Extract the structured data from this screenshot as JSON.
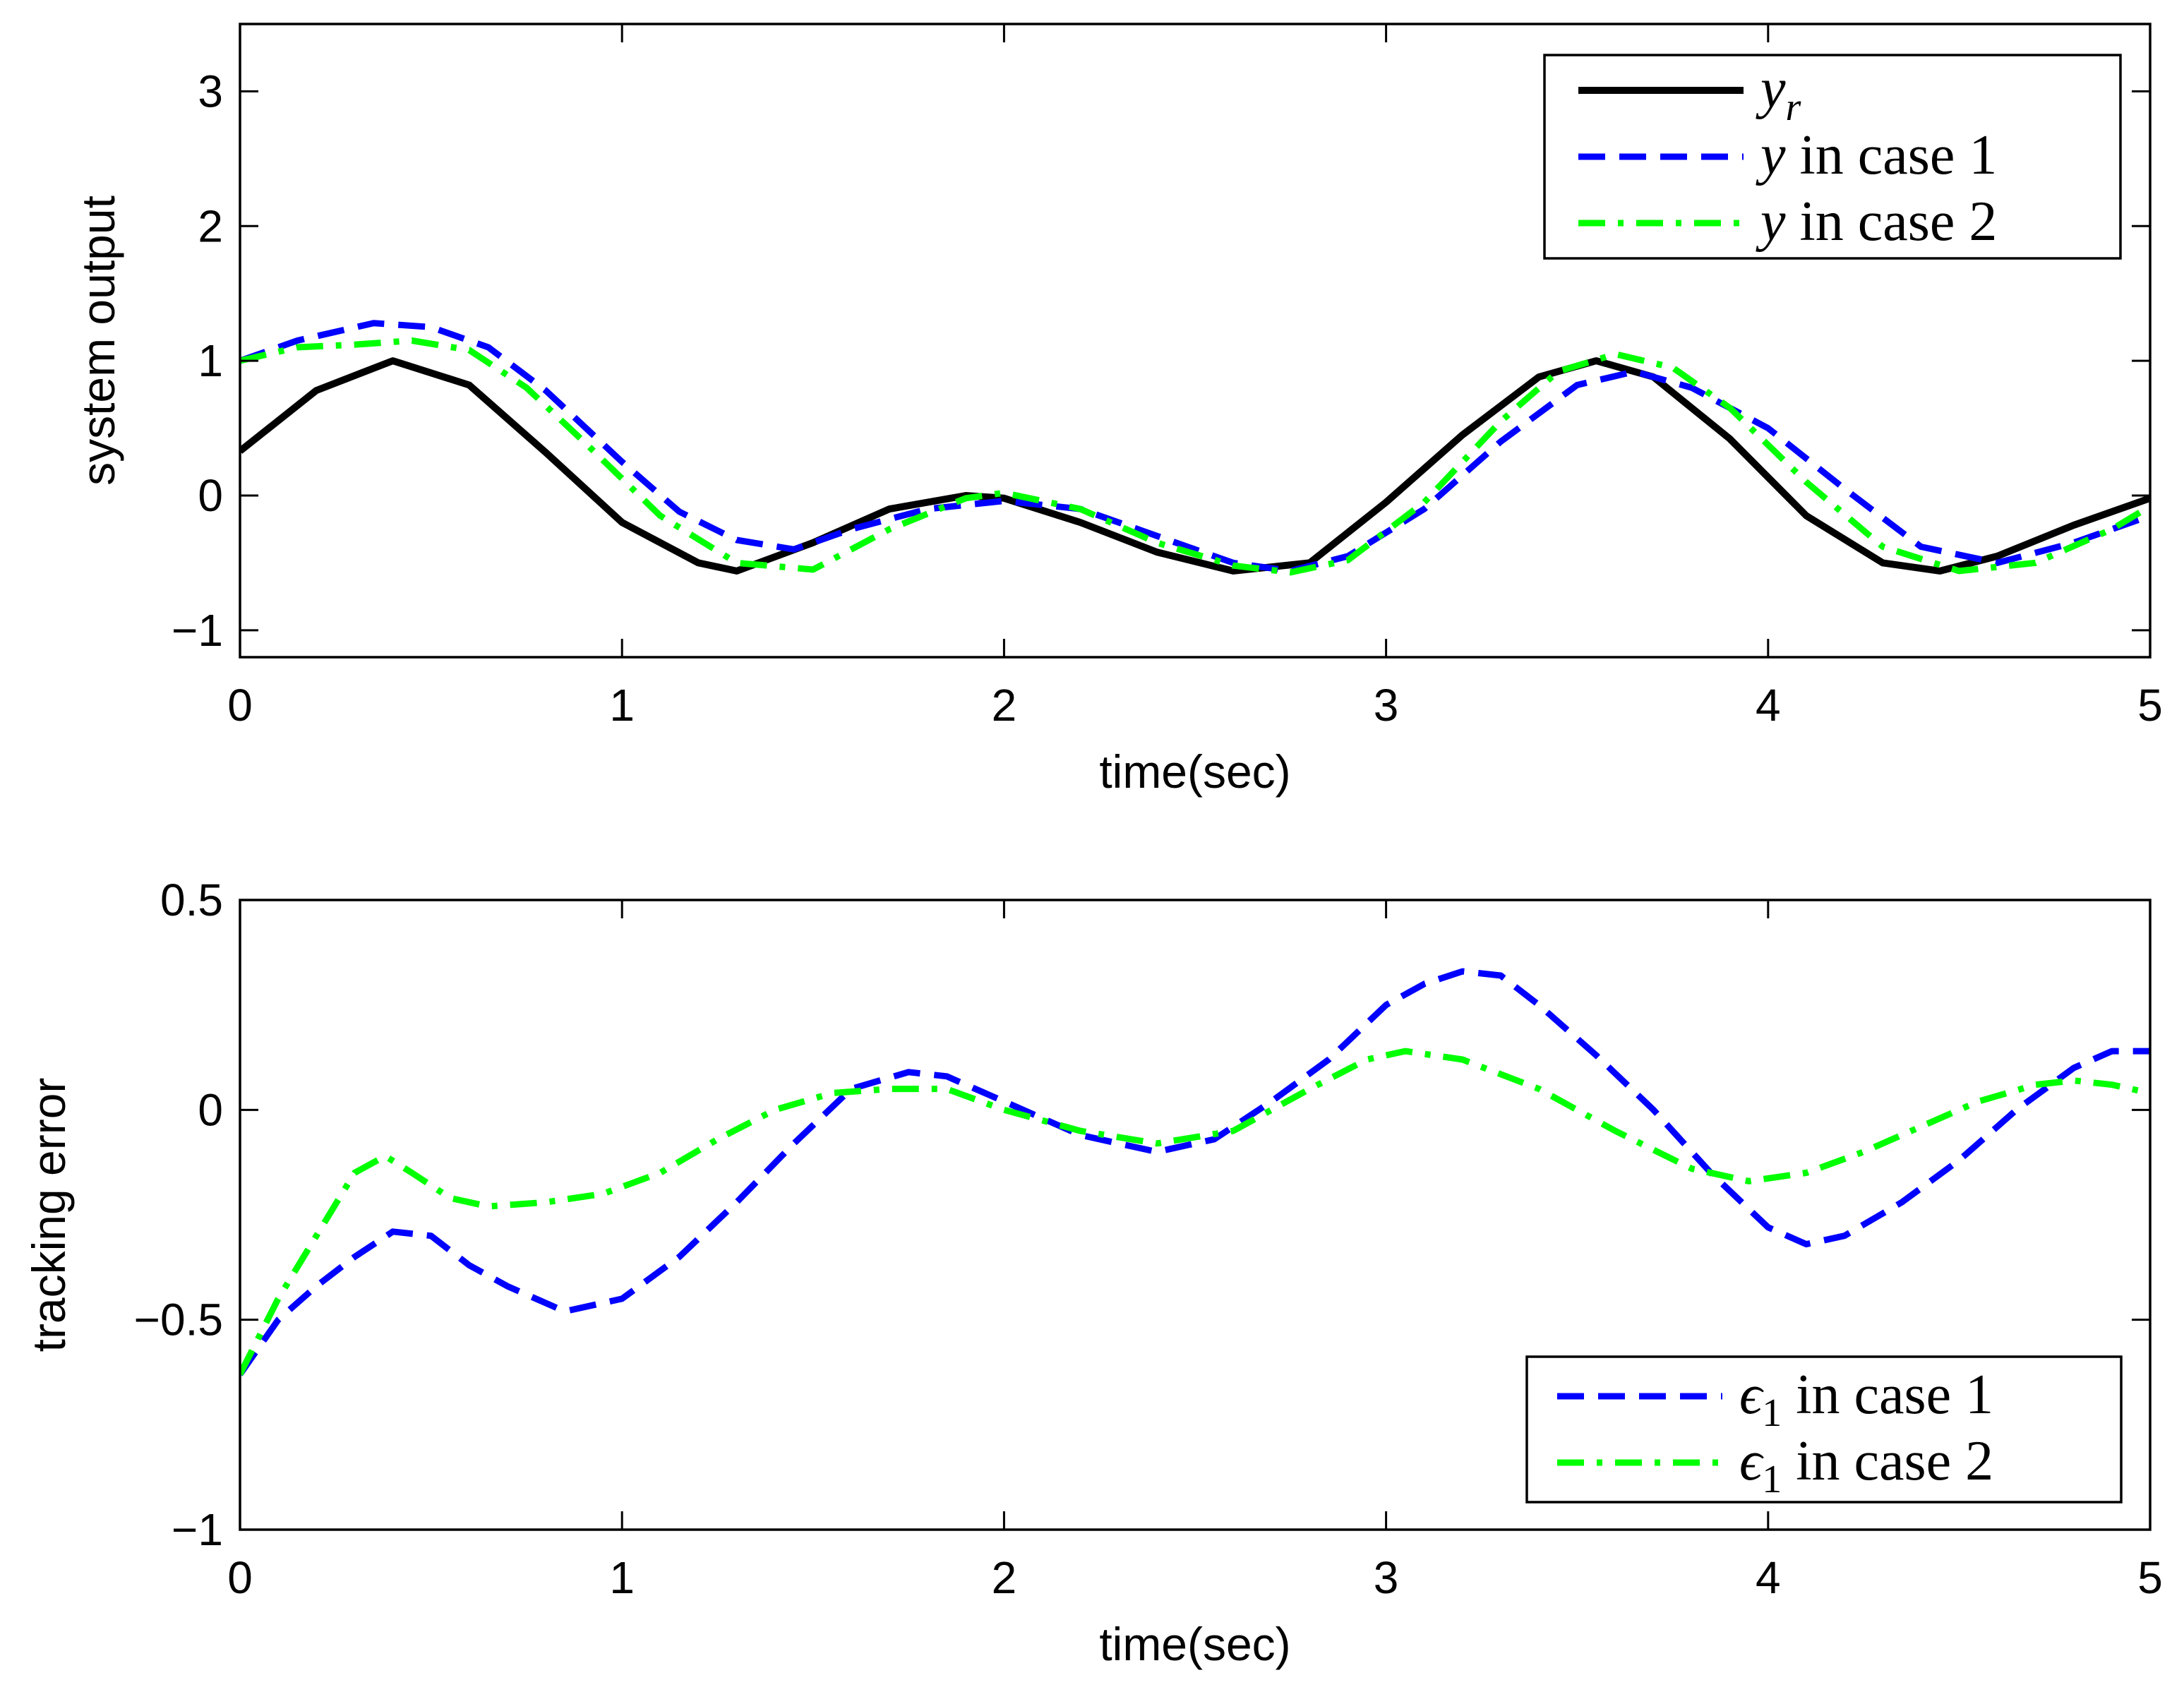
{
  "chart_data": [
    {
      "type": "line",
      "xlabel": "time(sec)",
      "ylabel": "system output",
      "xlim": [
        0,
        5
      ],
      "ylim": [
        -1.2,
        3.5
      ],
      "xticks": [
        0,
        1,
        2,
        3,
        4,
        5
      ],
      "yticks": [
        -1,
        0,
        1,
        2,
        3
      ],
      "ytick_labels": [
        "−1",
        "0",
        "1",
        "2",
        "3"
      ],
      "grid": false,
      "legend_position": "top-right",
      "series": [
        {
          "name": "y_r",
          "legend": {
            "symbol": "y",
            "subscript": "r",
            "suffix": ""
          },
          "color": "#000000",
          "style": "solid",
          "x": [
            0,
            0.2,
            0.4,
            0.6,
            0.8,
            1.0,
            1.2,
            1.3,
            1.5,
            1.7,
            1.9,
            2.0,
            2.2,
            2.4,
            2.6,
            2.8,
            3.0,
            3.2,
            3.4,
            3.55,
            3.7,
            3.9,
            4.1,
            4.3,
            4.45,
            4.6,
            4.8,
            5.0
          ],
          "y": [
            0.33,
            0.78,
            1.0,
            0.82,
            0.32,
            -0.2,
            -0.5,
            -0.56,
            -0.35,
            -0.1,
            0.0,
            -0.02,
            -0.2,
            -0.42,
            -0.56,
            -0.5,
            -0.05,
            0.45,
            0.88,
            1.0,
            0.88,
            0.42,
            -0.15,
            -0.5,
            -0.56,
            -0.45,
            -0.22,
            -0.02
          ]
        },
        {
          "name": "y in case 1",
          "legend": {
            "symbol": "y",
            "subscript": "",
            "suffix": " in case 1"
          },
          "color": "#0000ff",
          "style": "dashed",
          "x": [
            0,
            0.15,
            0.35,
            0.5,
            0.65,
            0.8,
            1.0,
            1.15,
            1.3,
            1.45,
            1.6,
            1.8,
            2.0,
            2.2,
            2.4,
            2.6,
            2.75,
            2.9,
            3.1,
            3.3,
            3.5,
            3.65,
            3.8,
            4.0,
            4.2,
            4.4,
            4.6,
            4.8,
            5.0
          ],
          "y": [
            1.0,
            1.15,
            1.28,
            1.25,
            1.1,
            0.78,
            0.25,
            -0.12,
            -0.33,
            -0.4,
            -0.25,
            -0.1,
            -0.04,
            -0.1,
            -0.3,
            -0.5,
            -0.56,
            -0.45,
            -0.1,
            0.4,
            0.82,
            0.92,
            0.8,
            0.5,
            0.05,
            -0.38,
            -0.5,
            -0.35,
            -0.15
          ]
        },
        {
          "name": "y in case 2",
          "legend": {
            "symbol": "y",
            "subscript": "",
            "suffix": " in case 2"
          },
          "color": "#00ff00",
          "style": "dashdot",
          "x": [
            0,
            0.15,
            0.3,
            0.45,
            0.6,
            0.75,
            0.9,
            1.1,
            1.3,
            1.5,
            1.7,
            1.9,
            2.0,
            2.2,
            2.4,
            2.6,
            2.75,
            2.9,
            3.1,
            3.3,
            3.45,
            3.6,
            3.75,
            3.9,
            4.1,
            4.3,
            4.5,
            4.7,
            4.9,
            5.0
          ],
          "y": [
            1.0,
            1.1,
            1.12,
            1.15,
            1.08,
            0.8,
            0.4,
            -0.15,
            -0.5,
            -0.55,
            -0.25,
            -0.02,
            0.02,
            -0.1,
            -0.35,
            -0.52,
            -0.57,
            -0.48,
            -0.05,
            0.55,
            0.92,
            1.05,
            0.95,
            0.65,
            0.1,
            -0.38,
            -0.56,
            -0.5,
            -0.25,
            -0.08
          ]
        }
      ]
    },
    {
      "type": "line",
      "xlabel": "time(sec)",
      "ylabel": "tracking error",
      "xlim": [
        0,
        5
      ],
      "ylim": [
        -1,
        0.5
      ],
      "xticks": [
        0,
        1,
        2,
        3,
        4,
        5
      ],
      "yticks": [
        -1,
        -0.5,
        0,
        0.5
      ],
      "ytick_labels": [
        "−1",
        "−0.5",
        "0",
        "0.5"
      ],
      "grid": false,
      "legend_position": "bottom-right",
      "series": [
        {
          "name": "epsilon_1 in case 1",
          "legend": {
            "symbol": "ϵ",
            "subscript": "1",
            "suffix": " in case 1"
          },
          "color": "#0000ff",
          "style": "dashed",
          "x": [
            0,
            0.1,
            0.2,
            0.3,
            0.4,
            0.5,
            0.6,
            0.7,
            0.85,
            1.0,
            1.15,
            1.3,
            1.45,
            1.6,
            1.75,
            1.85,
            2.0,
            2.2,
            2.4,
            2.55,
            2.7,
            2.85,
            3.0,
            3.1,
            3.2,
            3.3,
            3.4,
            3.55,
            3.7,
            3.85,
            4.0,
            4.1,
            4.2,
            4.35,
            4.5,
            4.65,
            4.8,
            4.9,
            5.0
          ],
          "y": [
            -0.63,
            -0.5,
            -0.42,
            -0.35,
            -0.29,
            -0.3,
            -0.37,
            -0.42,
            -0.48,
            -0.45,
            -0.35,
            -0.22,
            -0.08,
            0.05,
            0.09,
            0.08,
            0.02,
            -0.06,
            -0.1,
            -0.07,
            0.02,
            0.12,
            0.25,
            0.3,
            0.33,
            0.32,
            0.25,
            0.13,
            0.0,
            -0.15,
            -0.28,
            -0.32,
            -0.3,
            -0.22,
            -0.12,
            0.0,
            0.1,
            0.14,
            0.14
          ]
        },
        {
          "name": "epsilon_1 in case 2",
          "legend": {
            "symbol": "ϵ",
            "subscript": "1",
            "suffix": " in case 2"
          },
          "color": "#00ff00",
          "style": "dashdot",
          "x": [
            0,
            0.1,
            0.2,
            0.3,
            0.38,
            0.45,
            0.55,
            0.65,
            0.8,
            0.95,
            1.1,
            1.25,
            1.4,
            1.55,
            1.7,
            1.85,
            2.0,
            2.2,
            2.4,
            2.6,
            2.8,
            2.95,
            3.05,
            3.2,
            3.4,
            3.6,
            3.8,
            3.95,
            4.1,
            4.25,
            4.4,
            4.55,
            4.7,
            4.8,
            4.9,
            5.0
          ],
          "y": [
            -0.63,
            -0.45,
            -0.3,
            -0.15,
            -0.11,
            -0.15,
            -0.21,
            -0.23,
            -0.22,
            -0.2,
            -0.15,
            -0.07,
            0.0,
            0.04,
            0.05,
            0.05,
            0.0,
            -0.05,
            -0.08,
            -0.05,
            0.05,
            0.12,
            0.14,
            0.12,
            0.05,
            -0.05,
            -0.14,
            -0.17,
            -0.15,
            -0.1,
            -0.04,
            0.02,
            0.06,
            0.07,
            0.06,
            0.04
          ]
        }
      ]
    }
  ]
}
